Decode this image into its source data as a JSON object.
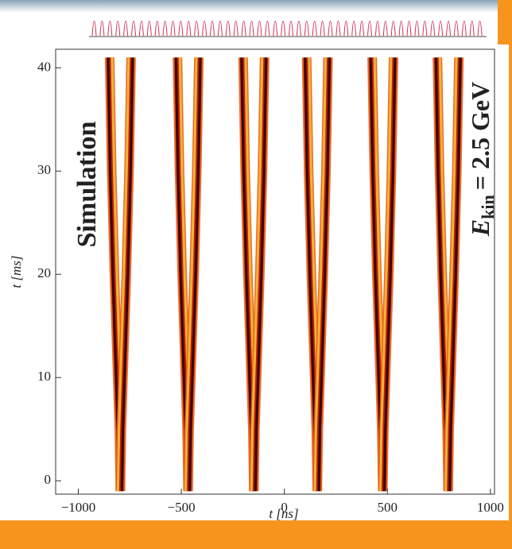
{
  "chart_data": {
    "type": "trace",
    "annotation": "Simulation",
    "energy_symbol": "E",
    "energy_subscript": "kin",
    "energy_value": "= 2.5 GeV",
    "x_label": "t [ns]",
    "y_label": "t [ms]",
    "xlim": [
      -1110,
      1020
    ],
    "ylim": [
      -1.3,
      41.8
    ],
    "xticks": [
      {
        "value": -1000,
        "label": "−1000"
      },
      {
        "value": -500,
        "label": "−500"
      },
      0,
      500,
      1000
    ],
    "yticks": [
      0,
      10,
      20,
      30,
      40
    ],
    "t": [
      -1,
      5,
      10,
      20,
      30,
      41
    ],
    "series": [
      {
        "color": "#b8200c",
        "values": [
          -796,
          -801,
          -809,
          -825,
          -838,
          -848
        ]
      },
      {
        "color": "#b8200c",
        "values": [
          -796,
          -791,
          -783,
          -767,
          -754,
          -744
        ]
      },
      {
        "color": "#b8200c",
        "values": [
          -467,
          -472,
          -480,
          -496,
          -509,
          -519
        ]
      },
      {
        "color": "#b8200c",
        "values": [
          -467,
          -462,
          -454,
          -438,
          -425,
          -415
        ]
      },
      {
        "color": "#b8200c",
        "values": [
          -148,
          -153,
          -161,
          -177,
          -190,
          -200
        ]
      },
      {
        "color": "#b8200c",
        "values": [
          -148,
          -143,
          -135,
          -119,
          -106,
          -96
        ]
      },
      {
        "color": "#b8200c",
        "values": [
          160,
          155,
          147,
          131,
          118,
          108
        ]
      },
      {
        "color": "#b8200c",
        "values": [
          160,
          165,
          173,
          189,
          202,
          212
        ]
      },
      {
        "color": "#b8200c",
        "values": [
          478,
          473,
          465,
          449,
          436,
          426
        ]
      },
      {
        "color": "#b8200c",
        "values": [
          478,
          483,
          491,
          507,
          520,
          530
        ]
      },
      {
        "color": "#b8200c",
        "values": [
          795,
          790,
          782,
          766,
          753,
          743
        ]
      },
      {
        "color": "#b8200c",
        "values": [
          795,
          800,
          808,
          824,
          837,
          847
        ]
      }
    ]
  }
}
